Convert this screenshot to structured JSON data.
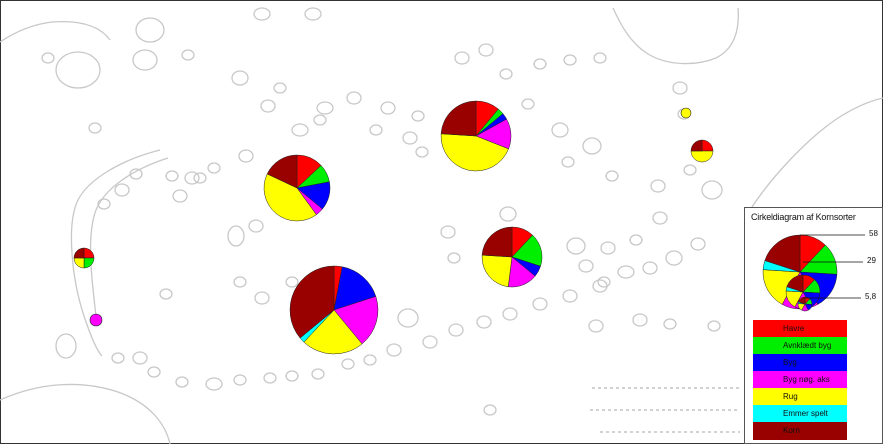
{
  "legend": {
    "title": "Cirkeldiagram af Kornsorter",
    "size_labels": [
      "58",
      "29",
      "5,8"
    ],
    "size_values": [
      58,
      29,
      5.8
    ],
    "categories": [
      {
        "label": "Havre",
        "color": "#ff0000"
      },
      {
        "label": "Avnklædt byg",
        "color": "#00ee00"
      },
      {
        "label": "Byg",
        "color": "#0000ff"
      },
      {
        "label": "Byg nøg. aks",
        "color": "#ff00ff"
      },
      {
        "label": "Rug",
        "color": "#ffff00"
      },
      {
        "label": "Emmer spelt",
        "color": "#00ffff"
      },
      {
        "label": "Korn",
        "color": "#990000"
      }
    ]
  },
  "map": {
    "background_color": "#ffffff",
    "outline_color": "#c8c8c8",
    "frame_color": "#333333"
  },
  "sites": [
    {
      "name": "pie-top-center",
      "shares": {
        "Havre": 0.11,
        "Avnklædt byg": 0.03,
        "Byg": 0.03,
        "Byg nøg. aks": 0.14,
        "Rug": 0.45,
        "Emmer spelt": 0.0,
        "Korn": 0.24
      }
    },
    {
      "name": "pie-left-upper",
      "shares": {
        "Havre": 0.13,
        "Avnklædt byg": 0.09,
        "Byg": 0.14,
        "Byg nøg. aks": 0.04,
        "Rug": 0.42,
        "Emmer spelt": 0.0,
        "Korn": 0.18
      }
    },
    {
      "name": "pie-center-right",
      "shares": {
        "Havre": 0.12,
        "Avnklædt byg": 0.18,
        "Byg": 0.06,
        "Byg nøg. aks": 0.16,
        "Rug": 0.24,
        "Emmer spelt": 0.0,
        "Korn": 0.24
      }
    },
    {
      "name": "pie-bottom-large",
      "shares": {
        "Havre": 0.03,
        "Avnklædt byg": 0.0,
        "Byg": 0.17,
        "Byg nøg. aks": 0.19,
        "Rug": 0.23,
        "Emmer spelt": 0.02,
        "Korn": 0.36
      }
    },
    {
      "name": "pie-far-left",
      "shares": {
        "Havre": 0.25,
        "Avnklædt byg": 0.25,
        "Byg": 0.0,
        "Byg nøg. aks": 0.0,
        "Rug": 0.25,
        "Emmer spelt": 0.0,
        "Korn": 0.25
      }
    },
    {
      "name": "pie-small-magenta",
      "shares": {
        "Havre": 0.0,
        "Avnklædt byg": 0.0,
        "Byg": 0.0,
        "Byg nøg. aks": 1.0,
        "Rug": 0.0,
        "Emmer spelt": 0.0,
        "Korn": 0.0
      }
    },
    {
      "name": "pie-right-small",
      "shares": {
        "Havre": 0.25,
        "Avnklædt byg": 0.0,
        "Byg": 0.0,
        "Byg nøg. aks": 0.0,
        "Rug": 0.5,
        "Emmer spelt": 0.0,
        "Korn": 0.25
      }
    },
    {
      "name": "pie-right-tiny",
      "shares": {
        "Havre": 0.0,
        "Avnklædt byg": 0.0,
        "Byg": 0.0,
        "Byg nøg. aks": 0.0,
        "Rug": 1.0,
        "Emmer spelt": 0.0,
        "Korn": 0.0
      }
    }
  ]
}
